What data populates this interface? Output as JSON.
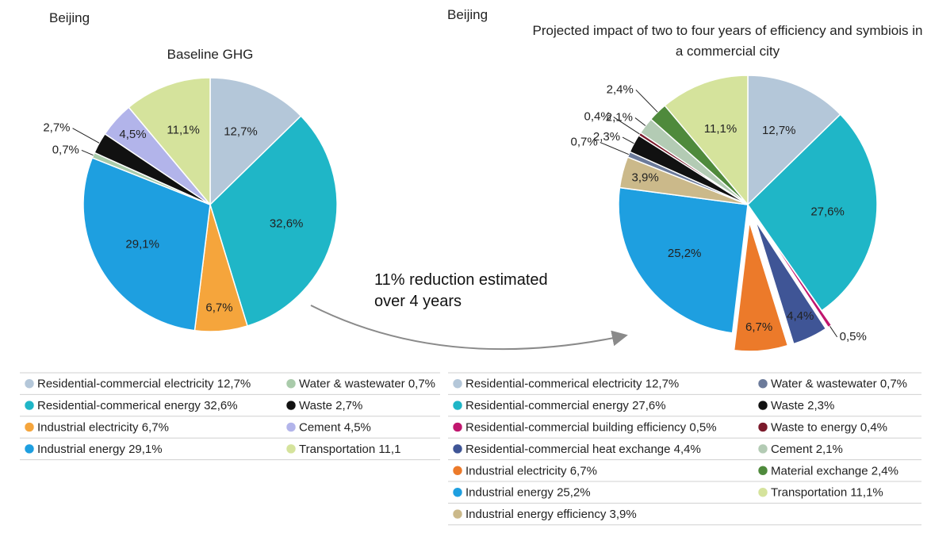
{
  "chart_data": [
    {
      "type": "pie",
      "header": "Beijing",
      "title": "Baseline GHG",
      "categories": [
        "Residential-commercial electricity 12,7%",
        "Residential-commerical energy 32,6%",
        "Industrial electricity 6,7%",
        "Industrial energy 29,1%",
        "Water & wastewater 0,7%",
        "Waste 2,7%",
        "Cement 4,5%",
        "Transportation 11,1"
      ],
      "values": [
        12.7,
        32.6,
        6.7,
        29.1,
        0.7,
        2.7,
        4.5,
        11.1
      ],
      "value_labels": [
        "12,7%",
        "32,6%",
        "6,7%",
        "29,1%",
        "0,7%",
        "2,7%",
        "4,5%",
        "11,1%"
      ],
      "colors": [
        "#b4c7d9",
        "#1fb6c7",
        "#f5a53c",
        "#1e9fe0",
        "#a9cbaa",
        "#111111",
        "#b2b4ea",
        "#d5e39c"
      ]
    },
    {
      "type": "pie",
      "header": "Beijing",
      "title": "Projected impact of two to four years of efficiency and symbiois in a commercial city",
      "categories": [
        "Residential-commerical electricity 12,7%",
        "Residential-commercial energy 27,6%",
        "Residential-commercial building efficiency 0,5%",
        "Residential-commercial heat exchange 4,4%",
        "Industrial electricity 6,7%",
        "Industrial energy 25,2%",
        "Industrial energy efficiency 3,9%",
        "Water & wastewater 0,7%",
        "Waste 2,3%",
        "Waste to energy 0,4%",
        "Cement 2,1%",
        "Material exchange 2,4%",
        "Transportation 11,1%"
      ],
      "values": [
        12.7,
        27.6,
        0.5,
        4.4,
        6.7,
        25.2,
        3.9,
        0.7,
        2.3,
        0.4,
        2.1,
        2.4,
        11.1
      ],
      "value_labels": [
        "12,7%",
        "27,6%",
        "0,5%",
        "4,4%",
        "6,7%",
        "25,2%",
        "3,9%",
        "0,7%",
        "2,3%",
        "0,4%",
        "2,1%",
        "2,4%",
        "11,1%"
      ],
      "colors": [
        "#b4c7d9",
        "#1fb6c7",
        "#c0166e",
        "#3f5596",
        "#ec7a2a",
        "#1e9fe0",
        "#cbb98a",
        "#6b7a9a",
        "#111111",
        "#7b1a2b",
        "#b3cbb4",
        "#4f8a3c",
        "#d5e39c"
      ],
      "explode": [
        false,
        false,
        true,
        true,
        true,
        false,
        false,
        false,
        false,
        false,
        false,
        false,
        false
      ]
    }
  ],
  "annotation": [
    "11% reduction estimated",
    "over 4 years"
  ]
}
